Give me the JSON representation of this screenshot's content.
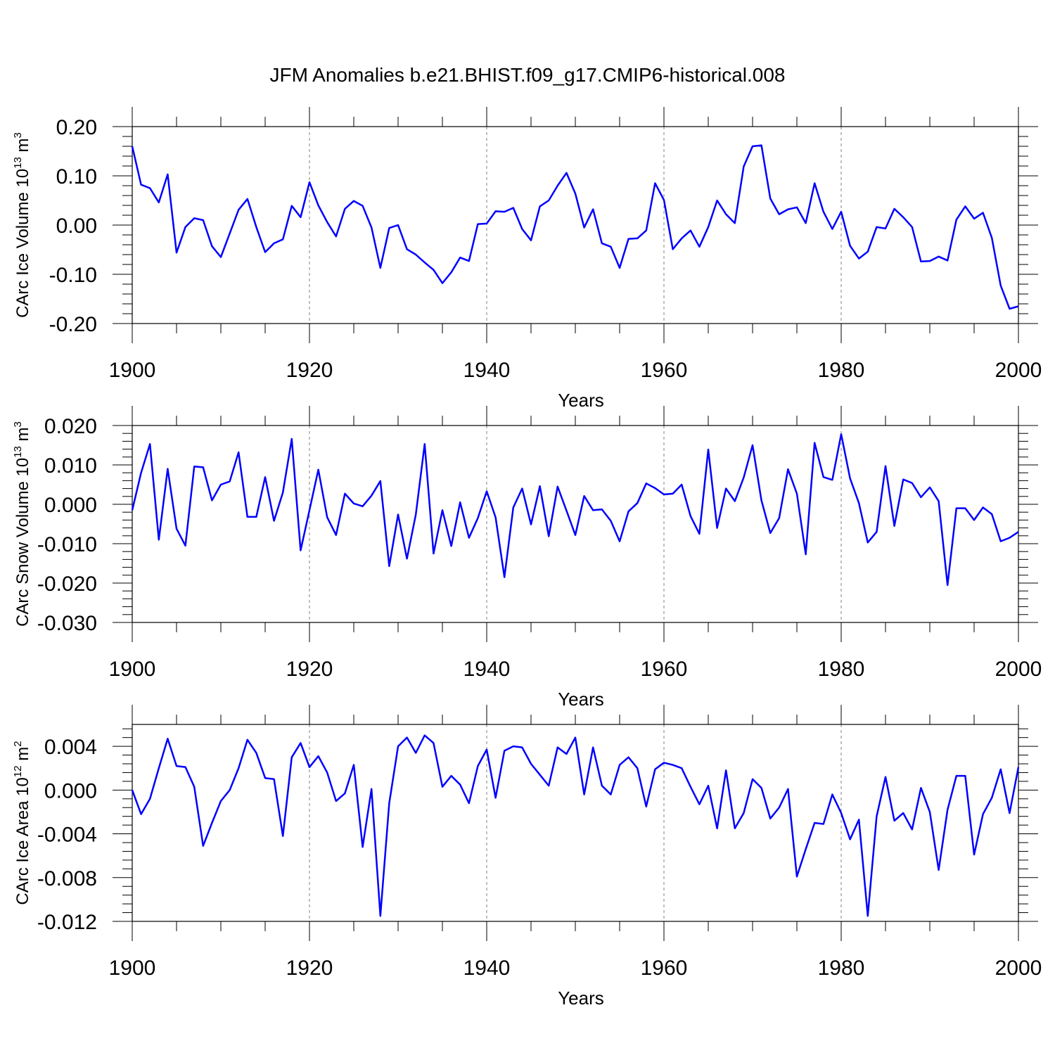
{
  "title": "JFM Anomalies b.e21.BHIST.f09_g17.CMIP6-historical.008",
  "colors": {
    "line": "#0000ff",
    "frame": "#000000",
    "grid": "#808080"
  },
  "chart_data": [
    {
      "type": "line",
      "ylabel": "CArc Ice Volume 10",
      "ylabel_exp": "13",
      "ylabel_unit": " m",
      "ylabel_unit_exp": "3",
      "xlabel": "Years",
      "xlim": [
        1900,
        2000
      ],
      "ylim": [
        -0.2,
        0.2
      ],
      "xticks": [
        "1900",
        "1920",
        "1940",
        "1960",
        "1980",
        "2000"
      ],
      "yticks": [
        {
          "value": 0.2,
          "label": "0.20"
        },
        {
          "value": 0.1,
          "label": "0.10"
        },
        {
          "value": 0.0,
          "label": "0.00"
        },
        {
          "value": -0.1,
          "label": "-0.10"
        },
        {
          "value": -0.2,
          "label": "-0.20"
        }
      ],
      "x_start": 1900,
      "values": [
        0.16,
        0.082,
        0.075,
        0.046,
        0.103,
        -0.056,
        -0.004,
        0.014,
        0.01,
        -0.043,
        -0.065,
        -0.017,
        0.031,
        0.053,
        -0.004,
        -0.055,
        -0.037,
        -0.029,
        0.039,
        0.016,
        0.087,
        0.04,
        0.006,
        -0.023,
        0.033,
        0.049,
        0.039,
        -0.005,
        -0.087,
        -0.006,
        0.0,
        -0.049,
        -0.06,
        -0.076,
        -0.091,
        -0.118,
        -0.096,
        -0.066,
        -0.073,
        0.002,
        0.003,
        0.028,
        0.027,
        0.035,
        -0.008,
        -0.031,
        0.038,
        0.05,
        0.08,
        0.106,
        0.064,
        -0.005,
        0.032,
        -0.037,
        -0.044,
        -0.087,
        -0.028,
        -0.027,
        -0.011,
        0.085,
        0.051,
        -0.049,
        -0.027,
        -0.011,
        -0.044,
        -0.004,
        0.05,
        0.022,
        0.004,
        0.119,
        0.16,
        0.162,
        0.054,
        0.022,
        0.032,
        0.036,
        0.004,
        0.085,
        0.027,
        -0.008,
        0.027,
        -0.042,
        -0.068,
        -0.054,
        -0.004,
        -0.007,
        0.033,
        0.016,
        -0.004,
        -0.074,
        -0.073,
        -0.064,
        -0.072,
        0.011,
        0.038,
        0.013,
        0.025,
        -0.026,
        -0.123,
        -0.17,
        -0.165
      ]
    },
    {
      "type": "line",
      "ylabel": "CArc Snow Volume 10",
      "ylabel_exp": "13",
      "ylabel_unit": " m",
      "ylabel_unit_exp": "3",
      "xlabel": "Years",
      "xlim": [
        1900,
        2000
      ],
      "ylim": [
        -0.03,
        0.02
      ],
      "xticks": [
        "1900",
        "1920",
        "1940",
        "1960",
        "1980",
        "2000"
      ],
      "yticks": [
        {
          "value": 0.02,
          "label": "0.020"
        },
        {
          "value": 0.01,
          "label": "0.010"
        },
        {
          "value": 0.0,
          "label": "0.000"
        },
        {
          "value": -0.01,
          "label": "-0.010"
        },
        {
          "value": -0.02,
          "label": "-0.020"
        },
        {
          "value": -0.03,
          "label": "-0.030"
        }
      ],
      "x_start": 1900,
      "values": [
        -0.0015,
        0.008,
        0.0153,
        -0.009,
        0.009,
        -0.0062,
        -0.0105,
        0.0096,
        0.0094,
        0.001,
        0.005,
        0.0058,
        0.0132,
        -0.0032,
        -0.0032,
        0.0069,
        -0.0042,
        0.003,
        0.0166,
        -0.0117,
        -0.0015,
        0.0088,
        -0.0033,
        -0.0078,
        0.0027,
        0.0002,
        -0.0005,
        0.0022,
        0.0059,
        -0.0157,
        -0.0026,
        -0.0138,
        -0.0026,
        0.0153,
        -0.0125,
        -0.0015,
        -0.0106,
        0.0005,
        -0.0085,
        -0.0035,
        0.0033,
        -0.0033,
        -0.0185,
        -0.0008,
        0.004,
        -0.0051,
        0.0046,
        -0.0081,
        0.0045,
        -0.0016,
        -0.0078,
        0.0021,
        -0.0015,
        -0.0013,
        -0.0042,
        -0.0094,
        -0.0018,
        0.0003,
        0.0053,
        0.0041,
        0.0025,
        0.0027,
        0.005,
        -0.003,
        -0.0075,
        0.0139,
        -0.006,
        0.004,
        0.0008,
        0.0068,
        0.015,
        0.001,
        -0.0073,
        -0.0035,
        0.0089,
        0.0027,
        -0.0127,
        0.0156,
        0.0069,
        0.0062,
        0.0178,
        0.0066,
        0.0003,
        -0.0097,
        -0.007,
        0.0097,
        -0.0055,
        0.0063,
        0.0054,
        0.0018,
        0.0043,
        0.0008,
        -0.0205,
        -0.001,
        -0.001,
        -0.004,
        -0.0008,
        -0.0025,
        -0.0094,
        -0.0085,
        -0.007
      ]
    },
    {
      "type": "line",
      "ylabel": "CArc Ice Area 10",
      "ylabel_exp": "12",
      "ylabel_unit": " m",
      "ylabel_unit_exp": "2",
      "xlabel": "Years",
      "xlim": [
        1900,
        2000
      ],
      "ylim": [
        -0.012,
        0.006
      ],
      "xticks": [
        "1900",
        "1920",
        "1940",
        "1960",
        "1980",
        "2000"
      ],
      "yticks": [
        {
          "value": 0.004,
          "label": "0.004"
        },
        {
          "value": 0.0,
          "label": "0.000"
        },
        {
          "value": -0.004,
          "label": "-0.004"
        },
        {
          "value": -0.008,
          "label": "-0.008"
        },
        {
          "value": -0.012,
          "label": "-0.012"
        }
      ],
      "x_start": 1900,
      "values": [
        0.0,
        -0.0022,
        -0.0008,
        0.002,
        0.0047,
        0.0022,
        0.0021,
        0.0003,
        -0.0051,
        -0.003,
        -0.001,
        0.0,
        0.002,
        0.0046,
        0.0034,
        0.0011,
        0.001,
        -0.0042,
        0.003,
        0.0043,
        0.0021,
        0.0031,
        0.0016,
        -0.001,
        -0.0003,
        0.0023,
        -0.0052,
        0.0001,
        -0.0115,
        -0.0012,
        0.004,
        0.0048,
        0.0034,
        0.005,
        0.0043,
        0.0003,
        0.0013,
        0.0005,
        -0.0012,
        0.0022,
        0.0037,
        -0.0007,
        0.0036,
        0.004,
        0.0039,
        0.0024,
        0.0014,
        0.0004,
        0.0039,
        0.0033,
        0.0048,
        -0.0004,
        0.0039,
        0.0004,
        -0.0004,
        0.0023,
        0.003,
        0.002,
        -0.0015,
        0.0019,
        0.0025,
        0.0023,
        0.002,
        0.0003,
        -0.0013,
        0.0004,
        -0.0035,
        0.0018,
        -0.0035,
        -0.0021,
        0.001,
        0.0002,
        -0.0026,
        -0.0016,
        0.0001,
        -0.0079,
        -0.0054,
        -0.003,
        -0.0031,
        -0.0004,
        -0.0021,
        -0.0045,
        -0.0027,
        -0.0115,
        -0.0024,
        0.0012,
        -0.0028,
        -0.0021,
        -0.0036,
        0.0002,
        -0.002,
        -0.0073,
        -0.0018,
        0.0013,
        0.0013,
        -0.0059,
        -0.0022,
        -0.0007,
        0.0019,
        -0.0021,
        0.0021
      ]
    }
  ]
}
